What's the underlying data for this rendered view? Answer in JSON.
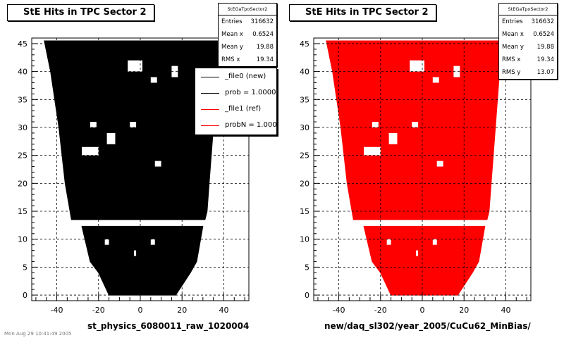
{
  "chart_data": [
    {
      "type": "scatter",
      "title": "StE Hits in TPC Sector 2",
      "xlabel": "st_physics_6080011_raw_1020004",
      "ylabel": "",
      "xlim": [
        -52,
        52
      ],
      "ylim": [
        -1,
        46
      ],
      "xticks": [
        "-40",
        "-20",
        "0",
        "20",
        "40"
      ],
      "yticks": [
        "0",
        "5",
        "10",
        "15",
        "20",
        "25",
        "30",
        "35",
        "40",
        "45"
      ],
      "grid": true,
      "color": "#000000",
      "stats": {
        "name": "StEGaTpoSector2",
        "rows": [
          {
            "label": "Entries",
            "value": "316632"
          },
          {
            "label": "Mean x",
            "value": "0.6524"
          },
          {
            "label": "Mean y",
            "value": "19.88"
          },
          {
            "label": "RMS x",
            "value": "19.34"
          }
        ]
      },
      "legend": {
        "placement": "top-right",
        "entries": [
          {
            "label": "_file0 (new)",
            "color": "#000000"
          },
          {
            "label": "prob = 1.000000",
            "color": "#000000"
          },
          {
            "label": "_file1 (ref)",
            "color": "#ff0000"
          },
          {
            "label": "probN = 1.000000",
            "color": "#ff0000"
          }
        ]
      }
    },
    {
      "type": "scatter",
      "title": "StE Hits in TPC Sector 2",
      "xlabel": "new/daq_sl302/year_2005/CuCu62_MinBias/",
      "ylabel": "",
      "xlim": [
        -52,
        52
      ],
      "ylim": [
        -1,
        46
      ],
      "xticks": [
        "-40",
        "-20",
        "0",
        "20",
        "40"
      ],
      "yticks": [
        "0",
        "5",
        "10",
        "15",
        "20",
        "25",
        "30",
        "35",
        "40",
        "45"
      ],
      "grid": true,
      "color": "#ff0000",
      "stats": {
        "name": "StEGaTpoSector2",
        "rows": [
          {
            "label": "Entries",
            "value": "316632"
          },
          {
            "label": "Mean x",
            "value": "0.6524"
          },
          {
            "label": "Mean y",
            "value": "19.88"
          },
          {
            "label": "RMS x",
            "value": "19.34"
          },
          {
            "label": "RMS y",
            "value": "13.07"
          }
        ]
      }
    }
  ],
  "footer_text": "Mon Aug 29 10:41:49 2005"
}
